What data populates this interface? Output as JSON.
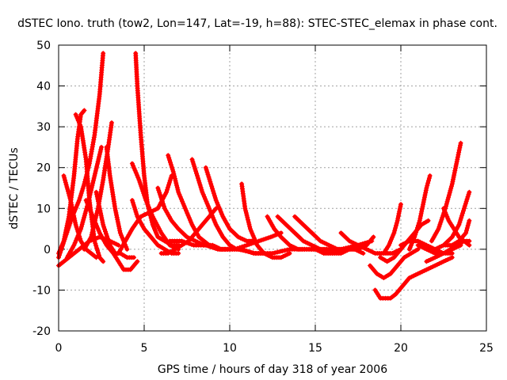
{
  "chart_data": {
    "type": "line",
    "title": "dSTEC Iono. truth (tow2, Lon=147, Lat=-19, h=88): STEC-STEC_elemax in phase cont.",
    "xlabel": "GPS time / hours of day 318 of year 2006",
    "ylabel": "dSTEC  / TECUs",
    "xlim": [
      0,
      25
    ],
    "ylim": [
      -20,
      50
    ],
    "xticks": [
      0,
      5,
      10,
      15,
      20,
      25
    ],
    "yticks": [
      -20,
      -10,
      0,
      10,
      20,
      30,
      40,
      50
    ],
    "grid": true,
    "legend": "none",
    "series_color": "#ff0000",
    "series": [
      {
        "x": [
          0.0,
          0.3,
          0.6,
          0.9,
          1.1,
          1.3,
          1.5
        ],
        "y": [
          -1,
          2,
          8,
          18,
          27,
          33,
          34
        ]
      },
      {
        "x": [
          1.0,
          1.3,
          1.6,
          1.8,
          2.1,
          2.4,
          2.6
        ],
        "y": [
          33,
          30,
          22,
          12,
          2,
          -2,
          -3
        ]
      },
      {
        "x": [
          0.0,
          0.4,
          0.8,
          1.2,
          1.5,
          1.8,
          2.1,
          2.4,
          2.6
        ],
        "y": [
          -2,
          3,
          8,
          12,
          16,
          21,
          28,
          38,
          48
        ]
      },
      {
        "x": [
          0.3,
          0.7,
          1.0,
          1.3,
          1.6,
          1.9,
          2.2
        ],
        "y": [
          18,
          12,
          6,
          2,
          0,
          -1,
          -2
        ]
      },
      {
        "x": [
          0.5,
          0.9,
          1.3,
          1.7,
          2.1,
          2.5
        ],
        "y": [
          -2,
          1,
          5,
          11,
          18,
          25
        ]
      },
      {
        "x": [
          1.5,
          1.9,
          2.3,
          2.6,
          2.9,
          3.1
        ],
        "y": [
          0,
          3,
          10,
          17,
          25,
          31
        ]
      },
      {
        "x": [
          1.6,
          2.0,
          2.4,
          2.8,
          3.2,
          3.5,
          3.8,
          4.2,
          4.6
        ],
        "y": [
          12,
          8,
          4,
          1,
          -1,
          -3,
          -5,
          -5,
          -3
        ]
      },
      {
        "x": [
          0.0,
          0.6,
          1.2,
          1.8,
          2.4,
          3.0,
          3.5
        ],
        "y": [
          -4,
          -2,
          0,
          2,
          3,
          2,
          1
        ]
      },
      {
        "x": [
          2.2,
          2.6,
          3.0,
          3.3,
          3.6,
          4.0,
          4.4
        ],
        "y": [
          14,
          6,
          1,
          -1,
          -1,
          -2,
          -2
        ]
      },
      {
        "x": [
          2.8,
          3.0,
          3.3,
          3.6,
          4.0
        ],
        "y": [
          25,
          18,
          10,
          4,
          0
        ]
      },
      {
        "x": [
          3.5,
          3.9,
          4.3,
          4.8,
          5.3,
          5.8,
          6.3,
          6.6
        ],
        "y": [
          -1,
          2,
          5,
          8,
          9,
          10,
          14,
          18
        ]
      },
      {
        "x": [
          4.5,
          4.6,
          4.8,
          5.0,
          5.2,
          5.5,
          5.8,
          6.2,
          6.6,
          7.0
        ],
        "y": [
          48,
          40,
          28,
          18,
          11,
          6,
          3,
          2,
          1,
          1
        ]
      },
      {
        "x": [
          4.3,
          4.7,
          5.1,
          5.5,
          6.0,
          6.5,
          7.0
        ],
        "y": [
          21,
          17,
          12,
          8,
          4,
          1,
          0
        ]
      },
      {
        "x": [
          4.3,
          4.6,
          5.0,
          5.4,
          5.8,
          6.2,
          6.6,
          7.0
        ],
        "y": [
          12,
          8,
          5,
          3,
          1,
          0,
          -1,
          -1
        ]
      },
      {
        "x": [
          6.4,
          6.7,
          7.0,
          7.4,
          7.8,
          8.2,
          8.8,
          9.4,
          10.0
        ],
        "y": [
          23,
          19,
          14,
          10,
          6,
          3,
          1,
          0,
          0
        ]
      },
      {
        "x": [
          6.0,
          6.4,
          6.8,
          7.2,
          7.6,
          8.0,
          8.4,
          8.8,
          9.2
        ],
        "y": [
          -1,
          -1,
          0,
          1,
          2,
          4,
          6,
          8,
          10
        ]
      },
      {
        "x": [
          7.8,
          8.1,
          8.4,
          8.8,
          9.2,
          9.6,
          10.0,
          10.4,
          10.8
        ],
        "y": [
          22,
          18,
          14,
          10,
          6,
          3,
          1,
          0,
          0
        ]
      },
      {
        "x": [
          8.6,
          8.9,
          9.2,
          9.6,
          10.0,
          10.5,
          11.0,
          11.5
        ],
        "y": [
          20,
          16,
          12,
          8,
          5,
          3,
          2,
          2
        ]
      },
      {
        "x": [
          5.8,
          6.2,
          6.6,
          7.0,
          7.5,
          8.0,
          8.5,
          9.0,
          9.5,
          10.0
        ],
        "y": [
          15,
          10,
          7,
          5,
          3,
          2,
          1,
          1,
          0,
          0
        ]
      },
      {
        "x": [
          6.5,
          7.2,
          7.9,
          8.6,
          9.3,
          10.0,
          10.7,
          11.4,
          12.0
        ],
        "y": [
          2,
          2,
          1,
          1,
          0,
          0,
          0,
          -1,
          -1
        ]
      },
      {
        "x": [
          10.7,
          10.9,
          11.2,
          11.6,
          12.0,
          12.5,
          13.0,
          13.5
        ],
        "y": [
          16,
          10,
          5,
          1,
          -1,
          -2,
          -2,
          -1
        ]
      },
      {
        "x": [
          9.5,
          10.3,
          11.0,
          11.7,
          12.4,
          13.0
        ],
        "y": [
          0,
          0,
          1,
          2,
          3,
          4
        ]
      },
      {
        "x": [
          12.2,
          12.6,
          13.0,
          13.5,
          14.0,
          14.5,
          15.0,
          15.5,
          16.0
        ],
        "y": [
          8,
          5,
          3,
          1,
          0,
          0,
          0,
          -1,
          -1
        ]
      },
      {
        "x": [
          12.8,
          13.3,
          13.8,
          14.3,
          14.8,
          15.3,
          15.8,
          16.3,
          16.8
        ],
        "y": [
          8,
          6,
          4,
          2,
          1,
          0,
          0,
          0,
          0
        ]
      },
      {
        "x": [
          13.8,
          14.3,
          14.8,
          15.3,
          15.8,
          16.3,
          16.8,
          17.3,
          17.8
        ],
        "y": [
          8,
          6,
          4,
          2,
          1,
          0,
          0,
          0,
          -1
        ]
      },
      {
        "x": [
          10.5,
          11.5,
          12.5,
          13.5,
          14.5,
          15.5,
          16.5,
          17.5,
          18.3
        ],
        "y": [
          0,
          -1,
          -1,
          0,
          0,
          0,
          0,
          1,
          2
        ]
      },
      {
        "x": [
          16.5,
          17.0,
          17.5,
          18.0,
          18.5,
          19.0,
          19.5,
          20.0
        ],
        "y": [
          4,
          2,
          1,
          0,
          -1,
          -1,
          -1,
          0
        ]
      },
      {
        "x": [
          15.5,
          16.0,
          16.5,
          17.0,
          17.5,
          18.0,
          18.4
        ],
        "y": [
          -1,
          -1,
          -1,
          0,
          0,
          1,
          3
        ]
      },
      {
        "x": [
          18.2,
          18.6,
          19.0,
          19.4,
          19.8,
          20.2,
          20.6,
          21.0
        ],
        "y": [
          -4,
          -6,
          -7,
          -6,
          -4,
          -2,
          -1,
          0
        ]
      },
      {
        "x": [
          18.5,
          18.8,
          19.1,
          19.4,
          19.7,
          20.1,
          20.5,
          21.0,
          21.5,
          22.0,
          22.5,
          23.0
        ],
        "y": [
          -10,
          -12,
          -12,
          -12,
          -11,
          -9,
          -7,
          -6,
          -5,
          -4,
          -3,
          -2
        ]
      },
      {
        "x": [
          18.8,
          19.2,
          19.6,
          20.0,
          20.4,
          20.8,
          21.2,
          21.6
        ],
        "y": [
          -2,
          -3,
          -2,
          0,
          2,
          4,
          6,
          7
        ]
      },
      {
        "x": [
          19.0,
          19.3,
          19.6,
          19.8,
          20.0
        ],
        "y": [
          -1,
          1,
          4,
          7,
          11
        ]
      },
      {
        "x": [
          20.5,
          20.8,
          21.1,
          21.3,
          21.5,
          21.7
        ],
        "y": [
          0,
          3,
          7,
          11,
          15,
          18
        ]
      },
      {
        "x": [
          20.0,
          20.5,
          21.0,
          21.5,
          22.0,
          22.5,
          23.0
        ],
        "y": [
          1,
          2,
          2,
          1,
          0,
          -1,
          -1
        ]
      },
      {
        "x": [
          21.8,
          22.2,
          22.6,
          23.0,
          23.3,
          23.5
        ],
        "y": [
          2,
          5,
          10,
          16,
          22,
          26
        ]
      },
      {
        "x": [
          21.5,
          22.0,
          22.5,
          22.9,
          23.3,
          23.7,
          24.0
        ],
        "y": [
          -3,
          -2,
          -1,
          0,
          1,
          2,
          2
        ]
      },
      {
        "x": [
          22.5,
          22.8,
          23.1,
          23.4,
          23.7,
          24.0
        ],
        "y": [
          10,
          7,
          5,
          3,
          2,
          1
        ]
      },
      {
        "x": [
          22.0,
          22.5,
          23.0,
          23.4,
          23.7,
          24.0
        ],
        "y": [
          0,
          1,
          3,
          6,
          10,
          14
        ]
      },
      {
        "x": [
          22.6,
          23.0,
          23.4,
          23.8,
          24.0
        ],
        "y": [
          1,
          1,
          2,
          4,
          7
        ]
      },
      {
        "x": [
          21.0,
          21.5,
          22.0,
          22.5,
          23.0,
          23.5
        ],
        "y": [
          1,
          0,
          -1,
          -1,
          0,
          1
        ]
      }
    ]
  }
}
